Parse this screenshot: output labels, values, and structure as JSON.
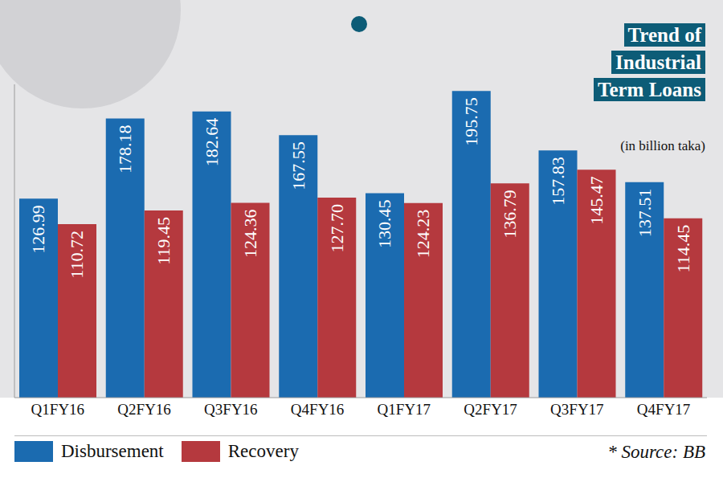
{
  "chart_data": {
    "type": "bar",
    "title": "Trend of Industrial Term Loans",
    "subtitle": "(in billion taka)",
    "source": "* Source: BB",
    "categories": [
      "Q1FY16",
      "Q2FY16",
      "Q3FY16",
      "Q4FY16",
      "Q1FY17",
      "Q2FY17",
      "Q3FY17",
      "Q4FY17"
    ],
    "series": [
      {
        "name": "Disbursement",
        "color": "#1b6bb0",
        "values": [
          126.99,
          178.18,
          182.64,
          167.55,
          130.45,
          195.75,
          157.83,
          137.51
        ],
        "value_labels": [
          "126.99",
          "178.18",
          "182.64",
          "167.55",
          "130.45",
          "195.75",
          "157.83",
          "137.51"
        ]
      },
      {
        "name": "Recovery",
        "color": "#b5393e",
        "values": [
          110.72,
          119.45,
          124.36,
          127.7,
          124.23,
          136.79,
          145.47,
          114.45
        ],
        "value_labels": [
          "110.72",
          "119.45",
          "124.36",
          "127.70",
          "124.23",
          "136.79",
          "145.47",
          "114.45"
        ]
      }
    ],
    "ylim": [
      0,
      200
    ],
    "tick_labels": "x",
    "data_labels": true,
    "legend": "bottom"
  }
}
